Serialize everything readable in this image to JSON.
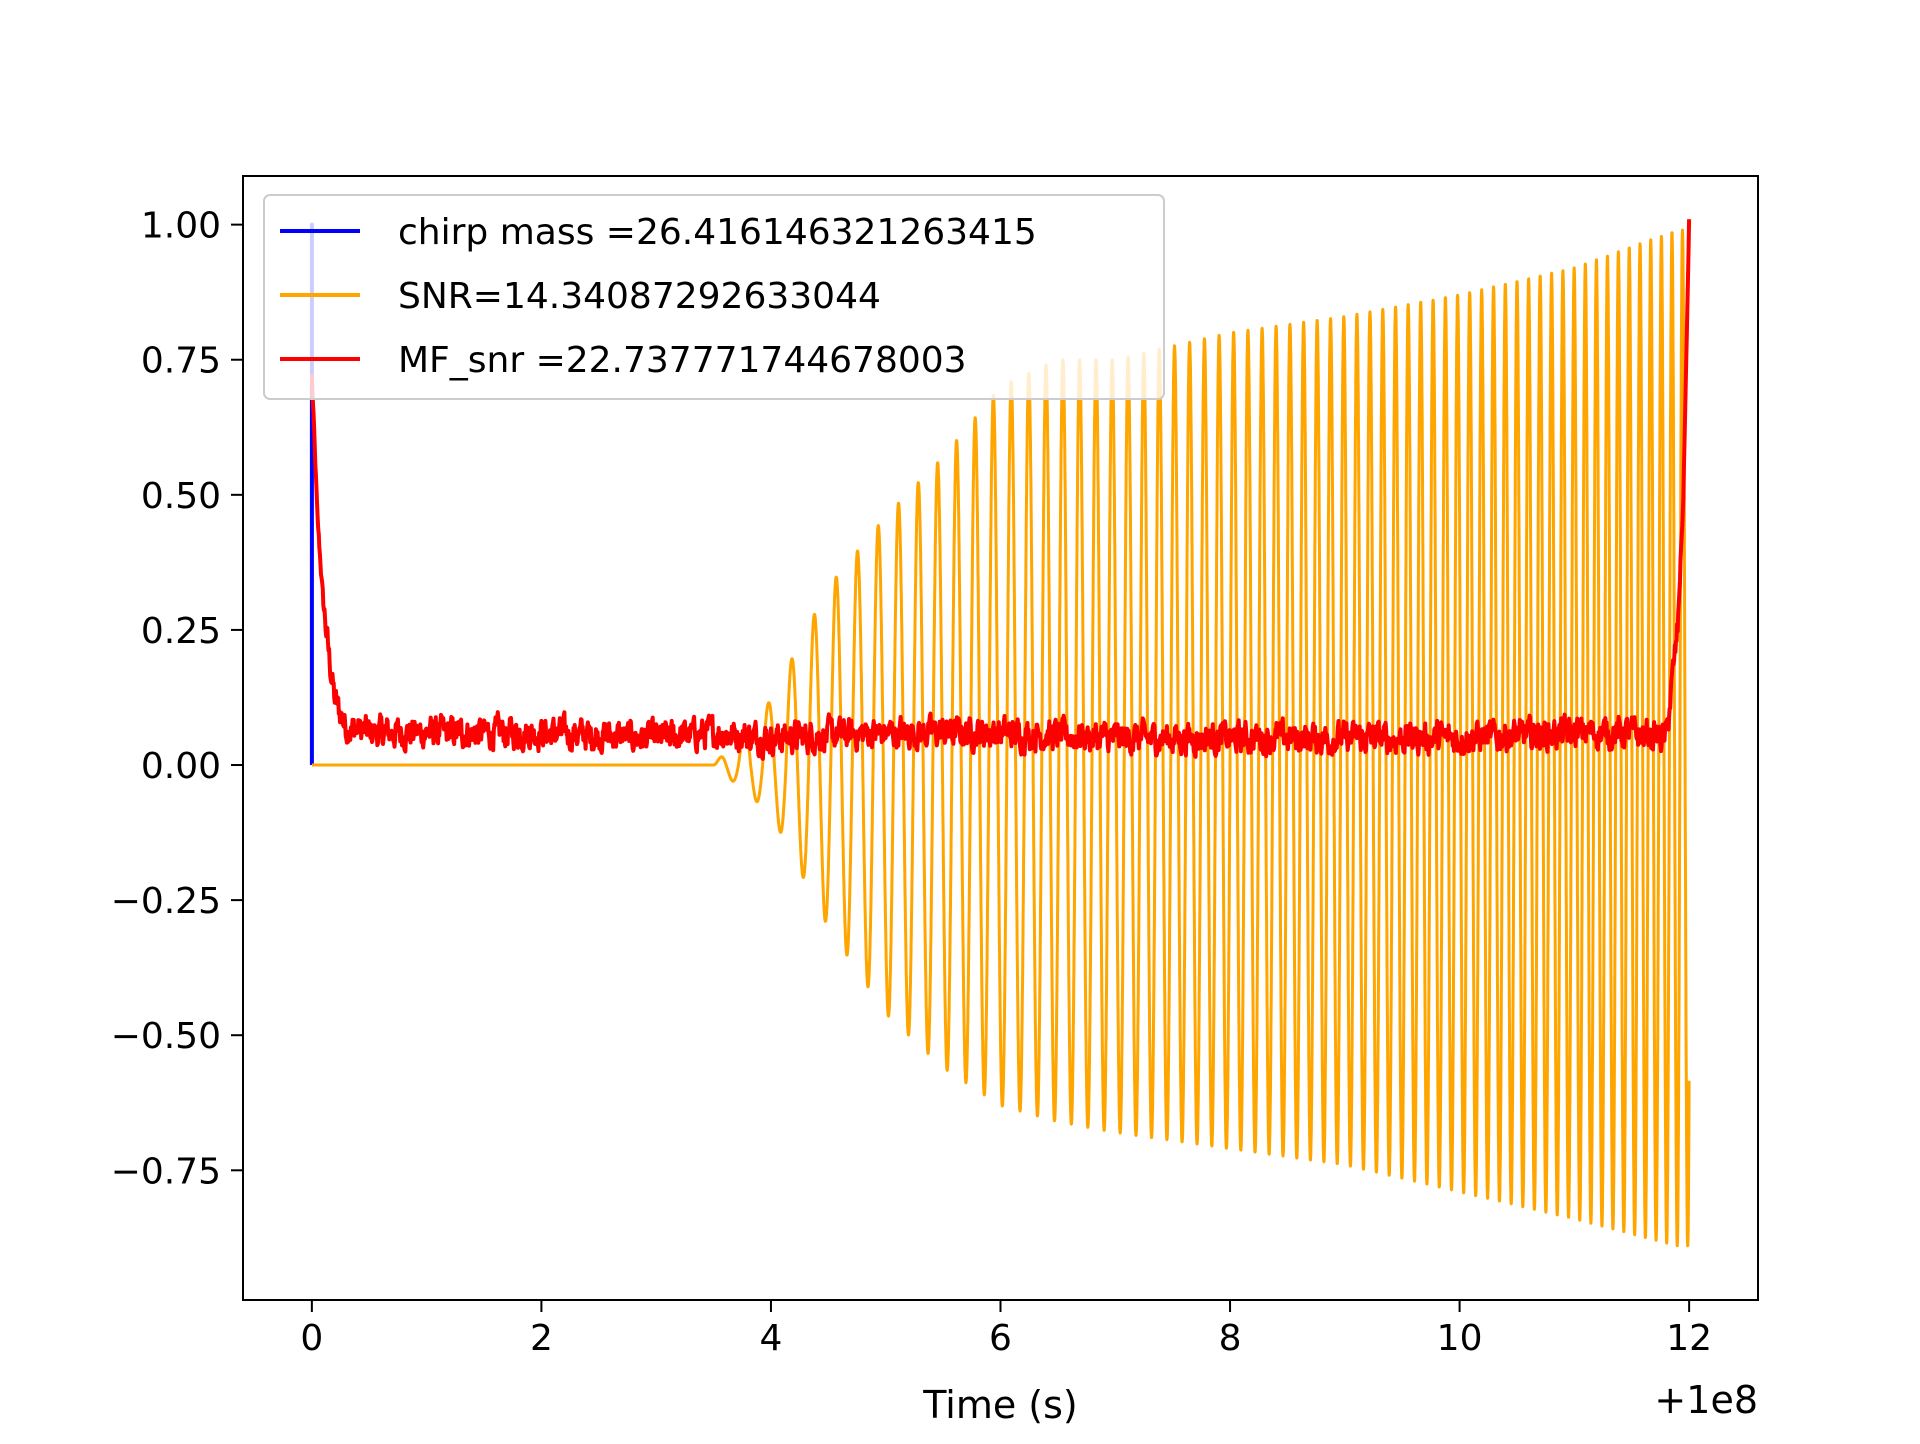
{
  "chart_data": {
    "type": "line",
    "title": "",
    "xlabel": "Time (s)",
    "ylabel": "",
    "x_offset_label": "+1e8",
    "xlim": [
      -0.6,
      12.6
    ],
    "ylim": [
      -0.99,
      1.09
    ],
    "x_ticks": [
      0,
      2,
      4,
      6,
      8,
      10,
      12
    ],
    "x_tick_labels": [
      "0",
      "2",
      "4",
      "6",
      "8",
      "10",
      "12"
    ],
    "y_ticks": [
      1.0,
      0.75,
      0.5,
      0.25,
      0.0,
      -0.25,
      -0.5,
      -0.75
    ],
    "y_tick_labels": [
      "1.00",
      "0.75",
      "0.50",
      "0.25",
      "0.00",
      "−0.25",
      "−0.50",
      "−0.75"
    ],
    "grid": false,
    "legend_position": "top-left",
    "series": [
      {
        "name": "chirp mass =26.416146321263415",
        "color": "#0000ff",
        "kind": "spike",
        "x": [
          0.0,
          0.0,
          0.0
        ],
        "y": [
          0.0,
          1.0,
          0.0
        ]
      },
      {
        "name": "SNR=14.34087292633044",
        "color": "#ffa500",
        "kind": "chirp-oscillation",
        "x_start": 0.0,
        "x_signal_start": 3.5,
        "x_end": 12.0,
        "baseline": 0.0,
        "peak_envelope": [
          {
            "x": 3.5,
            "max": 0.0,
            "min": 0.0
          },
          {
            "x": 4.0,
            "max": 0.12,
            "min": -0.09
          },
          {
            "x": 4.5,
            "max": 0.33,
            "min": -0.3
          },
          {
            "x": 5.0,
            "max": 0.46,
            "min": -0.46
          },
          {
            "x": 5.5,
            "max": 0.57,
            "min": -0.56
          },
          {
            "x": 6.0,
            "max": 0.7,
            "min": -0.63
          },
          {
            "x": 6.5,
            "max": 0.75,
            "min": -0.66
          },
          {
            "x": 7.0,
            "max": 0.75,
            "min": -0.68
          },
          {
            "x": 8.0,
            "max": 0.8,
            "min": -0.71
          },
          {
            "x": 9.0,
            "max": 0.83,
            "min": -0.74
          },
          {
            "x": 10.0,
            "max": 0.87,
            "min": -0.79
          },
          {
            "x": 11.0,
            "max": 0.92,
            "min": -0.84
          },
          {
            "x": 11.9,
            "max": 0.99,
            "min": -0.89
          }
        ]
      },
      {
        "name": "MF_snr =22.737771744678003",
        "color": "#ff0000",
        "kind": "noisy-decay",
        "x": [
          0.0,
          0.05,
          0.1,
          0.15,
          0.2,
          0.3,
          0.5,
          1.0,
          2.0,
          3.0,
          3.5,
          4.0,
          5.0,
          6.0,
          7.0,
          8.0,
          9.0,
          10.0,
          11.0,
          11.5,
          11.8,
          11.9,
          11.95,
          12.0
        ],
        "y": [
          0.72,
          0.45,
          0.3,
          0.2,
          0.12,
          0.07,
          0.06,
          0.06,
          0.06,
          0.05,
          0.06,
          0.05,
          0.06,
          0.06,
          0.05,
          0.05,
          0.05,
          0.05,
          0.06,
          0.06,
          0.05,
          0.25,
          0.5,
          1.0
        ],
        "noise_amplitude": 0.05
      }
    ]
  }
}
